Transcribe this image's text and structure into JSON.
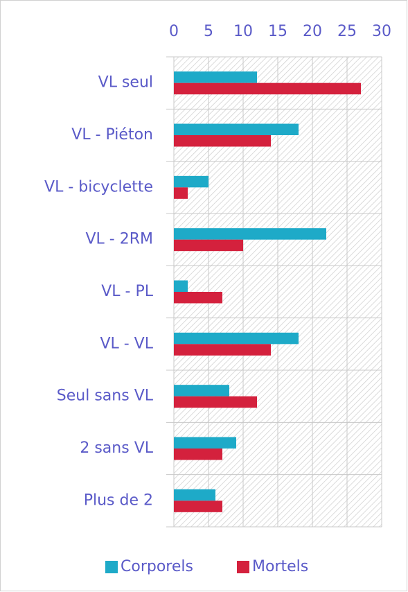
{
  "chart_data": {
    "type": "hbar",
    "categories": [
      "VL seul",
      "VL - Piéton",
      "VL - bicyclette",
      "VL - 2RM",
      "VL - PL",
      "VL - VL",
      "Seul sans VL",
      "2 sans VL",
      "Plus de 2"
    ],
    "series": [
      {
        "name": "Corporels",
        "color": "#1eaac8",
        "values": [
          12,
          18,
          5,
          22,
          2,
          18,
          8,
          9,
          6
        ]
      },
      {
        "name": "Mortels",
        "color": "#d4213d",
        "values": [
          27,
          14,
          2,
          10,
          7,
          14,
          12,
          7,
          7
        ]
      }
    ],
    "xlim": [
      0,
      30
    ],
    "xticks": [
      0,
      5,
      10,
      15,
      20,
      25,
      30
    ],
    "grid": true,
    "legend": "bottom"
  }
}
